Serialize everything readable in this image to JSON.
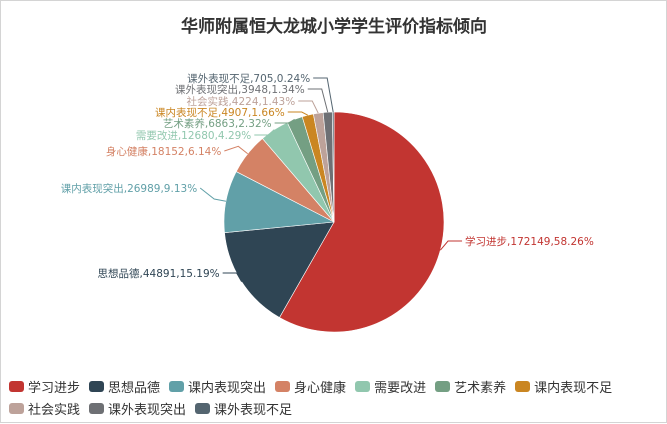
{
  "chart_data": {
    "type": "pie",
    "title": "华师附属恒大龙城小学学生评价指标倾向",
    "slices": [
      {
        "name": "学习进步",
        "value": 172149,
        "percent": "58.26%",
        "label": "学习进步,172149,58.26%",
        "color": "#c23531"
      },
      {
        "name": "思想品德",
        "value": 44891,
        "percent": "15.19%",
        "label": "思想品德,44891,15.19%",
        "color": "#2f4554"
      },
      {
        "name": "课内表现突出",
        "value": 26989,
        "percent": "9.13%",
        "label": "课内表现突出,26989,9.13%",
        "color": "#61a0a8"
      },
      {
        "name": "身心健康",
        "value": 18152,
        "percent": "6.14%",
        "label": "身心健康,18152,6.14%",
        "color": "#d48265"
      },
      {
        "name": "需要改进",
        "value": 12680,
        "percent": "4.29%",
        "label": "需要改进,12680,4.29%",
        "color": "#91c7ae"
      },
      {
        "name": "艺术素养",
        "value": 6863,
        "percent": "2.32%",
        "label": "艺术素养,6863,2.32%",
        "color": "#749f83"
      },
      {
        "name": "课内表现不足",
        "value": 4907,
        "percent": "1.66%",
        "label": "课内表现不足,4907,1.66%",
        "color": "#ca8622"
      },
      {
        "name": "社会实践",
        "value": 4224,
        "percent": "1.43%",
        "label": "社会实践,4224,1.43%",
        "color": "#bda29a"
      },
      {
        "name": "课外表现突出",
        "value": 3948,
        "percent": "1.34%",
        "label": "课外表现突出,3948,1.34%",
        "color": "#6e7074"
      },
      {
        "name": "课外表现不足",
        "value": 705,
        "percent": "0.24%",
        "label": "课外表现不足,705,0.24%",
        "color": "#546570"
      }
    ],
    "legend_position": "bottom"
  }
}
